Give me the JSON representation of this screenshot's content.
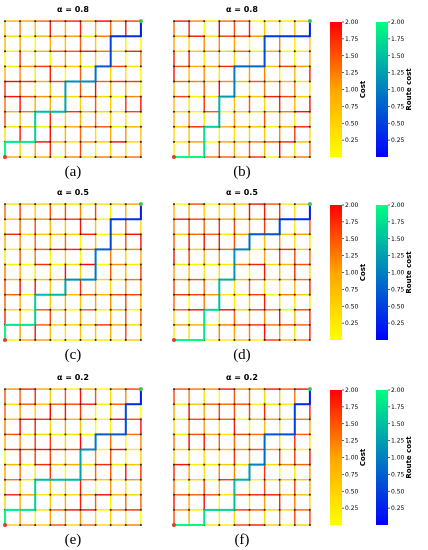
{
  "panels": [
    {
      "title": "α = 0.8",
      "label": "(a)",
      "route": [
        [
          0,
          0
        ],
        [
          0,
          1
        ],
        [
          2,
          1
        ],
        [
          2,
          3
        ],
        [
          4,
          3
        ],
        [
          4,
          5
        ],
        [
          6,
          5
        ],
        [
          6,
          6
        ],
        [
          7,
          6
        ],
        [
          7,
          8
        ],
        [
          9,
          8
        ],
        [
          9,
          9
        ]
      ]
    },
    {
      "title": "α = 0.8",
      "label": "(b)",
      "route": [
        [
          0,
          0
        ],
        [
          2,
          0
        ],
        [
          2,
          2
        ],
        [
          3,
          2
        ],
        [
          3,
          4
        ],
        [
          4,
          4
        ],
        [
          4,
          6
        ],
        [
          6,
          6
        ],
        [
          6,
          8
        ],
        [
          9,
          8
        ],
        [
          9,
          9
        ]
      ]
    },
    {
      "title": "α = 0.5",
      "label": "(c)",
      "route": [
        [
          0,
          0
        ],
        [
          0,
          1
        ],
        [
          2,
          1
        ],
        [
          2,
          3
        ],
        [
          4,
          3
        ],
        [
          4,
          4
        ],
        [
          6,
          4
        ],
        [
          6,
          6
        ],
        [
          7,
          6
        ],
        [
          7,
          8
        ],
        [
          9,
          8
        ],
        [
          9,
          9
        ]
      ]
    },
    {
      "title": "α = 0.5",
      "label": "(d)",
      "route": [
        [
          0,
          0
        ],
        [
          2,
          0
        ],
        [
          2,
          2
        ],
        [
          3,
          2
        ],
        [
          3,
          4
        ],
        [
          4,
          4
        ],
        [
          4,
          6
        ],
        [
          5,
          6
        ],
        [
          5,
          7
        ],
        [
          7,
          7
        ],
        [
          7,
          8
        ],
        [
          9,
          8
        ],
        [
          9,
          9
        ]
      ]
    },
    {
      "title": "α = 0.2",
      "label": "(e)",
      "route": [
        [
          0,
          0
        ],
        [
          0,
          1
        ],
        [
          2,
          1
        ],
        [
          2,
          3
        ],
        [
          5,
          3
        ],
        [
          5,
          5
        ],
        [
          6,
          5
        ],
        [
          6,
          6
        ],
        [
          8,
          6
        ],
        [
          8,
          8
        ],
        [
          9,
          8
        ],
        [
          9,
          9
        ]
      ]
    },
    {
      "title": "α = 0.2",
      "label": "(f)",
      "route": [
        [
          0,
          0
        ],
        [
          2,
          0
        ],
        [
          2,
          1
        ],
        [
          4,
          1
        ],
        [
          4,
          3
        ],
        [
          5,
          3
        ],
        [
          5,
          4
        ],
        [
          6,
          4
        ],
        [
          6,
          6
        ],
        [
          8,
          6
        ],
        [
          8,
          8
        ],
        [
          9,
          8
        ],
        [
          9,
          9
        ]
      ]
    }
  ],
  "colorbars": [
    {
      "label": "Cost",
      "colors": [
        "#ffff00",
        "#ffa500",
        "#ff0000"
      ],
      "lim": [
        0,
        2
      ],
      "ticks": [
        {
          "value": 0.25,
          "label": "0.25"
        },
        {
          "value": 0.5,
          "label": "0.50"
        },
        {
          "value": 0.75,
          "label": "0.75"
        },
        {
          "value": 1,
          "label": "1.00"
        },
        {
          "value": 1.25,
          "label": "1.25"
        },
        {
          "value": 1.5,
          "label": "1.50"
        },
        {
          "value": 1.75,
          "label": "1.75"
        },
        {
          "value": 2,
          "label": "2.00"
        }
      ]
    },
    {
      "label": "Route cost",
      "colors": [
        "#0000ff",
        "#00ff80"
      ],
      "lim": [
        0,
        2
      ],
      "ticks": [
        {
          "value": 0.25,
          "label": "0.25"
        },
        {
          "value": 0.5,
          "label": "0.50"
        },
        {
          "value": 0.75,
          "label": "0.75"
        },
        {
          "value": 1,
          "label": "1.00"
        },
        {
          "value": 1.25,
          "label": "1.25"
        },
        {
          "value": 1.5,
          "label": "1.50"
        },
        {
          "value": 1.75,
          "label": "1.75"
        },
        {
          "value": 2,
          "label": "2.00"
        }
      ]
    }
  ]
}
